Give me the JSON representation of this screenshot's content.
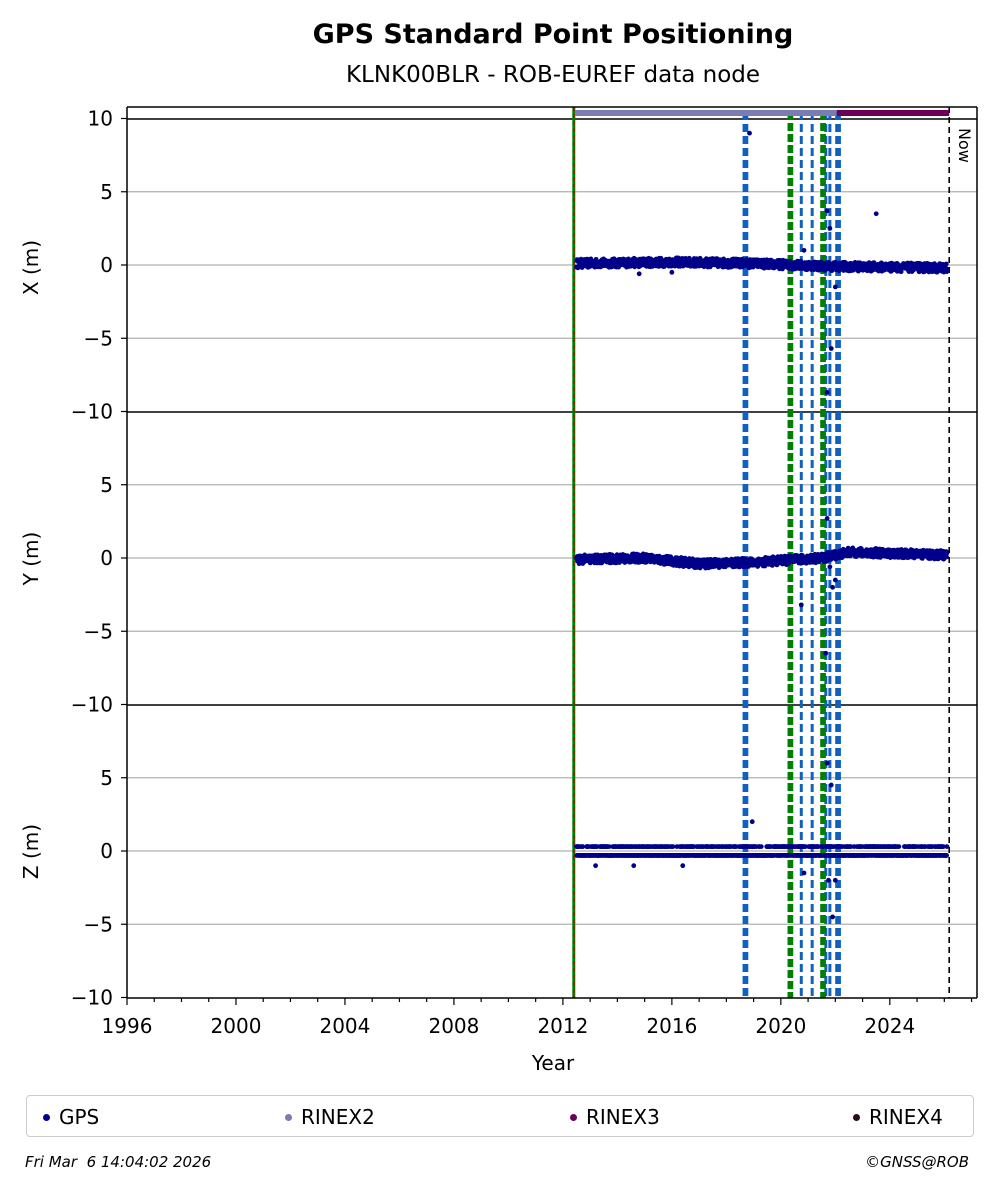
{
  "chart_data": {
    "type": "scatter",
    "title": "GPS Standard Point Positioning",
    "subtitle": "KLNK00BLR - ROB-EUREF data node",
    "xlabel": "Year",
    "xlim": [
      1996,
      2027.2
    ],
    "xticks": [
      "1996",
      "2000",
      "2004",
      "2008",
      "2012",
      "2016",
      "2020",
      "2024"
    ],
    "now_label": "Now",
    "now_year": 2026.18,
    "start_year": 2012.4,
    "panels": [
      {
        "ylabel": "X (m)",
        "ylim": [
          -10,
          10
        ],
        "yticks": [
          "10",
          "5",
          "0",
          "−5",
          "−10"
        ],
        "trend": [
          [
            2012.5,
            0.1
          ],
          [
            2016,
            0.2
          ],
          [
            2019,
            0.1
          ],
          [
            2022,
            -0.1
          ],
          [
            2026.1,
            -0.2
          ]
        ],
        "outliers": [
          [
            2018.85,
            9.0
          ],
          [
            2020.85,
            1.0
          ],
          [
            2021.7,
            3.7
          ],
          [
            2021.8,
            2.5
          ],
          [
            2021.85,
            -5.7
          ],
          [
            2021.7,
            -8.7
          ],
          [
            2022.0,
            -1.5
          ],
          [
            2023.5,
            3.5
          ],
          [
            2014.8,
            -0.6
          ],
          [
            2016.0,
            -0.5
          ]
        ]
      },
      {
        "ylabel": "Y (m)",
        "ylim": [
          -10,
          10
        ],
        "yticks": [
          "5",
          "0",
          "−5",
          "−10"
        ],
        "trend": [
          [
            2012.5,
            -0.1
          ],
          [
            2015,
            0.0
          ],
          [
            2017,
            -0.4
          ],
          [
            2019,
            -0.3
          ],
          [
            2021.5,
            0.0
          ],
          [
            2022.5,
            0.4
          ],
          [
            2026.1,
            0.2
          ]
        ],
        "outliers": [
          [
            2020.75,
            -3.2
          ],
          [
            2021.7,
            2.7
          ],
          [
            2021.9,
            -2.0
          ],
          [
            2021.65,
            -6.5
          ],
          [
            2021.8,
            -0.6
          ],
          [
            2022.0,
            -1.5
          ]
        ]
      },
      {
        "ylabel": "Z (m)",
        "ylim": [
          -10,
          10
        ],
        "yticks": [
          "5",
          "0",
          "−5",
          "−10"
        ],
        "trend": [
          [
            2012.5,
            -0.3
          ],
          [
            2026.1,
            -0.3
          ]
        ],
        "outliers": [
          [
            2018.95,
            2.0
          ],
          [
            2020.85,
            -1.5
          ],
          [
            2021.7,
            6.0
          ],
          [
            2021.85,
            4.5
          ],
          [
            2021.75,
            -2.0
          ],
          [
            2021.9,
            -4.5
          ],
          [
            2022.0,
            -2.0
          ],
          [
            2013.2,
            -1.0
          ],
          [
            2014.6,
            -1.0
          ],
          [
            2016.4,
            -1.0
          ]
        ]
      }
    ],
    "vlines": {
      "red_green": [
        2012.4
      ],
      "blue": [
        2018.65,
        2018.75,
        2020.75,
        2021.15,
        2021.65,
        2021.8,
        2022.05,
        2022.15
      ],
      "green": [
        2020.3,
        2020.4,
        2021.5,
        2021.6
      ],
      "black_now": [
        2026.18
      ]
    },
    "rinex_bars": [
      {
        "name": "RINEX2",
        "from": 2012.45,
        "to": 2022.05
      },
      {
        "name": "RINEX3",
        "from": 2022.05,
        "to": 2026.18
      }
    ],
    "colors": {
      "GPS": "#00008b",
      "RINEX2": "#7b7bb5",
      "RINEX3": "#6a0057",
      "RINEX4": "#2b0a1e",
      "blue_lines": "#1060c0",
      "green_lines": "#008000",
      "red_line": "#cc0000",
      "grid": "#b0b0b0"
    }
  },
  "legend": [
    {
      "label": "GPS",
      "color": "#00008b"
    },
    {
      "label": "RINEX2",
      "color": "#7b7bb5"
    },
    {
      "label": "RINEX3",
      "color": "#6a0057"
    },
    {
      "label": "RINEX4",
      "color": "#2b0a1e"
    }
  ],
  "footer": {
    "timestamp": "Fri Mar  6 14:04:02 2026",
    "copyright": "©GNSS@ROB"
  }
}
